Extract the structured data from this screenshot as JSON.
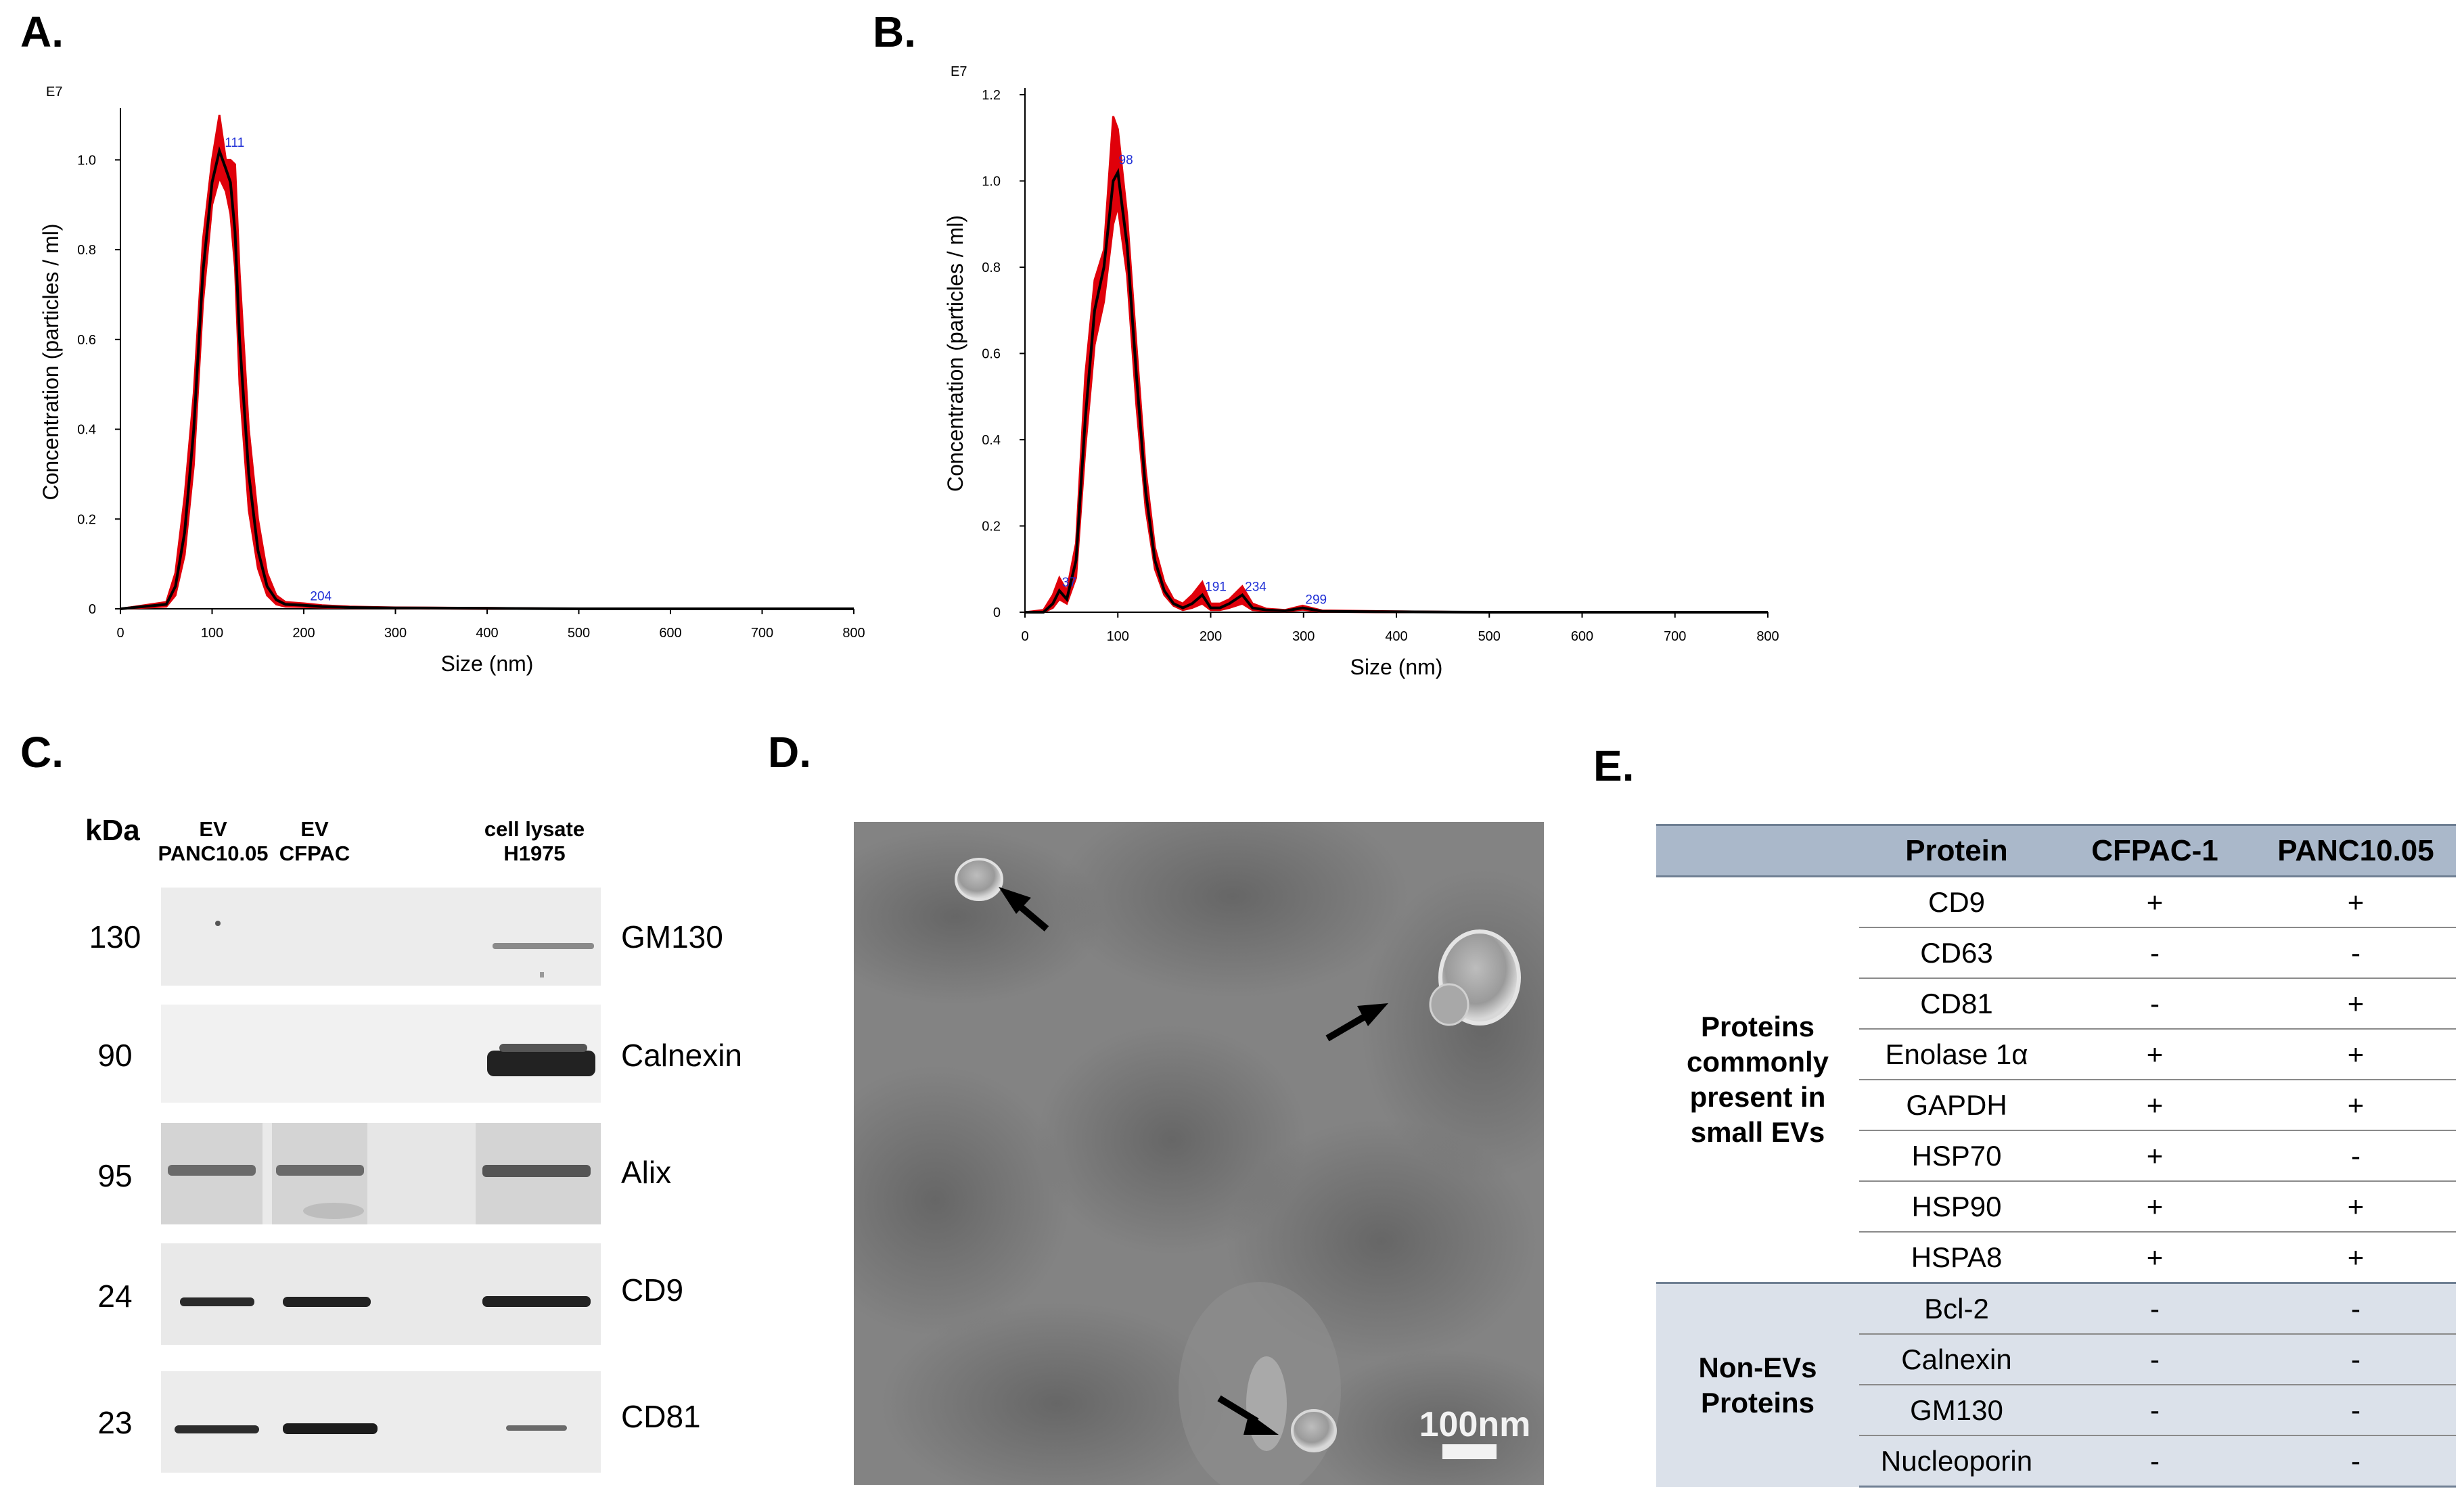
{
  "panels": {
    "a": "A.",
    "b": "B.",
    "c": "C.",
    "d": "D.",
    "e": "E."
  },
  "colors": {
    "band_fill": "#e0000a",
    "mean_line": "#000000",
    "peak_label": "#1f2fd6",
    "table_header": "#aab8ca",
    "table_nonev": "#dbe1ea"
  },
  "chart_data": [
    {
      "type": "line",
      "panel": "A.",
      "multiplier_label": "E7",
      "xlabel": "Size (nm)",
      "ylabel": "Concentration (particles / ml)",
      "xlim": [
        0,
        800
      ],
      "ylim": [
        0,
        1.1
      ],
      "x_ticks": [
        0,
        100,
        200,
        300,
        400,
        500,
        600,
        700,
        800
      ],
      "y_ticks": [
        "0",
        "0.2",
        "0.4",
        "0.6",
        "0.8",
        "1.0"
      ],
      "peak_labels": [
        {
          "x": 111,
          "y": 1.02,
          "text": "111"
        },
        {
          "x": 204,
          "y": 0.01,
          "text": "204"
        }
      ],
      "series": [
        {
          "role": "mean",
          "x": [
            0,
            50,
            60,
            70,
            80,
            90,
            100,
            108,
            115,
            120,
            125,
            130,
            140,
            150,
            160,
            170,
            180,
            200,
            220,
            250,
            300,
            400,
            500,
            600,
            700,
            800
          ],
          "y": [
            0,
            0.01,
            0.05,
            0.17,
            0.4,
            0.75,
            0.95,
            1.02,
            0.98,
            0.95,
            0.84,
            0.6,
            0.3,
            0.13,
            0.05,
            0.02,
            0.01,
            0.008,
            0.005,
            0.003,
            0.002,
            0.001,
            0.0,
            0.0,
            0.0,
            0.0
          ]
        },
        {
          "role": "upper",
          "x": [
            0,
            50,
            60,
            70,
            80,
            90,
            100,
            108,
            115,
            120,
            125,
            130,
            140,
            150,
            160,
            170,
            180,
            200,
            220,
            250,
            300,
            400,
            500,
            600,
            700,
            800
          ],
          "y": [
            0,
            0.015,
            0.08,
            0.25,
            0.48,
            0.82,
            1.0,
            1.1,
            1.0,
            1.0,
            0.99,
            0.75,
            0.4,
            0.2,
            0.08,
            0.03,
            0.015,
            0.012,
            0.008,
            0.005,
            0.003,
            0.002,
            0.0,
            0.0,
            0.0,
            0.0
          ]
        },
        {
          "role": "lower",
          "x": [
            0,
            50,
            60,
            70,
            80,
            90,
            100,
            108,
            115,
            120,
            125,
            130,
            140,
            150,
            160,
            170,
            180,
            200,
            220,
            250,
            300,
            400,
            500,
            600,
            700,
            800
          ],
          "y": [
            0,
            0.005,
            0.03,
            0.12,
            0.32,
            0.68,
            0.9,
            0.96,
            0.93,
            0.88,
            0.76,
            0.5,
            0.22,
            0.09,
            0.03,
            0.01,
            0.005,
            0.004,
            0.003,
            0.002,
            0.001,
            0.0,
            0.0,
            0.0,
            0.0,
            0.0
          ]
        }
      ]
    },
    {
      "type": "line",
      "panel": "B.",
      "multiplier_label": "E7",
      "xlabel": "Size (nm)",
      "ylabel": "Concentration (particles / ml)",
      "xlim": [
        0,
        800
      ],
      "ylim": [
        0,
        1.2
      ],
      "x_ticks": [
        0,
        100,
        200,
        300,
        400,
        500,
        600,
        700,
        800
      ],
      "y_ticks": [
        "0",
        "0.2",
        "0.4",
        "0.6",
        "0.8",
        "1.0",
        "1.2"
      ],
      "peak_labels": [
        {
          "x": 37,
          "y": 0.05,
          "text": "37"
        },
        {
          "x": 98,
          "y": 1.03,
          "text": "98"
        },
        {
          "x": 191,
          "y": 0.04,
          "text": "191"
        },
        {
          "x": 234,
          "y": 0.04,
          "text": "234"
        },
        {
          "x": 299,
          "y": 0.01,
          "text": "299"
        }
      ],
      "series": [
        {
          "role": "mean",
          "x": [
            0,
            20,
            30,
            37,
            45,
            55,
            65,
            75,
            85,
            95,
            100,
            110,
            120,
            130,
            140,
            150,
            160,
            170,
            180,
            191,
            200,
            210,
            220,
            234,
            245,
            260,
            280,
            299,
            320,
            400,
            500,
            600,
            700,
            800
          ],
          "y": [
            0,
            0.0,
            0.02,
            0.05,
            0.03,
            0.12,
            0.45,
            0.7,
            0.8,
            1.0,
            1.02,
            0.85,
            0.55,
            0.28,
            0.12,
            0.05,
            0.02,
            0.01,
            0.02,
            0.04,
            0.01,
            0.01,
            0.02,
            0.04,
            0.01,
            0.005,
            0.003,
            0.01,
            0.002,
            0.001,
            0.0,
            0.0,
            0.0,
            0.0
          ]
        },
        {
          "role": "upper",
          "x": [
            0,
            20,
            30,
            37,
            45,
            55,
            65,
            75,
            85,
            95,
            100,
            110,
            120,
            130,
            140,
            150,
            160,
            170,
            180,
            191,
            200,
            210,
            220,
            234,
            245,
            260,
            280,
            299,
            320,
            400,
            500,
            600,
            700,
            800
          ],
          "y": [
            0,
            0.005,
            0.04,
            0.08,
            0.05,
            0.16,
            0.55,
            0.77,
            0.84,
            1.15,
            1.12,
            0.92,
            0.62,
            0.33,
            0.15,
            0.07,
            0.03,
            0.02,
            0.04,
            0.07,
            0.02,
            0.02,
            0.03,
            0.06,
            0.02,
            0.008,
            0.005,
            0.015,
            0.004,
            0.002,
            0.0,
            0.0,
            0.0,
            0.0
          ]
        },
        {
          "role": "lower",
          "x": [
            0,
            20,
            30,
            37,
            45,
            55,
            65,
            75,
            85,
            95,
            100,
            110,
            120,
            130,
            140,
            150,
            160,
            170,
            180,
            191,
            200,
            210,
            220,
            234,
            245,
            260,
            280,
            299,
            320,
            400,
            500,
            600,
            700,
            800
          ],
          "y": [
            0,
            0.0,
            0.01,
            0.03,
            0.02,
            0.08,
            0.38,
            0.62,
            0.72,
            0.9,
            0.94,
            0.78,
            0.48,
            0.24,
            0.1,
            0.04,
            0.015,
            0.005,
            0.01,
            0.02,
            0.005,
            0.005,
            0.01,
            0.02,
            0.005,
            0.003,
            0.002,
            0.006,
            0.001,
            0.0,
            0.0,
            0.0,
            0.0,
            0.0
          ]
        }
      ]
    }
  ],
  "western_blot": {
    "kda_header": "kDa",
    "lanes": [
      {
        "line1": "EV",
        "line2": "PANC10.05"
      },
      {
        "line1": "EV",
        "line2": "CFPAC"
      },
      {
        "line1": "cell lysate",
        "line2": "H1975"
      }
    ],
    "rows": [
      {
        "kda": "130",
        "marker": "GM130"
      },
      {
        "kda": "90",
        "marker": "Calnexin"
      },
      {
        "kda": "95",
        "marker": "Alix"
      },
      {
        "kda": "24",
        "marker": "CD9"
      },
      {
        "kda": "23",
        "marker": "CD81"
      }
    ]
  },
  "tem": {
    "scale_bar": "100nm"
  },
  "protein_table": {
    "headers": [
      "",
      "Protein",
      "CFPAC-1",
      "PANC10.05"
    ],
    "groups": [
      {
        "label": "Proteins commonly present in small EVs",
        "rows": [
          {
            "protein": "CD9",
            "cfpac": "+",
            "panc": "+"
          },
          {
            "protein": "CD63",
            "cfpac": "-",
            "panc": "-"
          },
          {
            "protein": "CD81",
            "cfpac": "-",
            "panc": "+"
          },
          {
            "protein": "Enolase 1α",
            "cfpac": "+",
            "panc": "+"
          },
          {
            "protein": "GAPDH",
            "cfpac": "+",
            "panc": "+"
          },
          {
            "protein": "HSP70",
            "cfpac": "+",
            "panc": "-"
          },
          {
            "protein": "HSP90",
            "cfpac": "+",
            "panc": "+"
          },
          {
            "protein": "HSPA8",
            "cfpac": "+",
            "panc": "+"
          }
        ]
      },
      {
        "label": "Non-EVs Proteins",
        "rows": [
          {
            "protein": "Bcl-2",
            "cfpac": "-",
            "panc": "-"
          },
          {
            "protein": "Calnexin",
            "cfpac": "-",
            "panc": "-"
          },
          {
            "protein": "GM130",
            "cfpac": "-",
            "panc": "-"
          },
          {
            "protein": "Nucleoporin",
            "cfpac": "-",
            "panc": "-"
          }
        ]
      }
    ]
  }
}
